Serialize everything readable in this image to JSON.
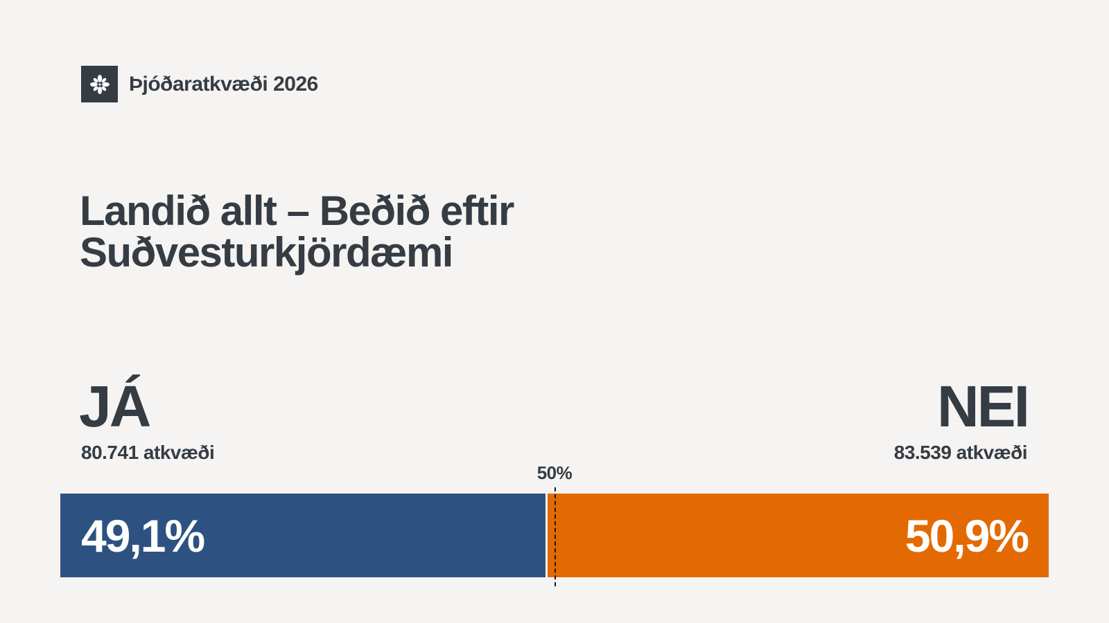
{
  "header": {
    "brand_name": "Þjóðaratkvæði 2026",
    "logo_icon": "sunburst-emblem-icon"
  },
  "title": {
    "line1": "Landið allt – Beðið eftir",
    "line2": "Suðvesturkjördæmi"
  },
  "result": {
    "yes": {
      "label": "JÁ",
      "votes_text": "80.741 atkvæði",
      "votes": 80741,
      "percent_text": "49,1%",
      "percent": 49.1,
      "color": "#2d5282"
    },
    "no": {
      "label": "NEI",
      "votes_text": "83.539 atkvæði",
      "votes": 83539,
      "percent_text": "50,9%",
      "percent": 50.9,
      "color": "#e36a02"
    },
    "threshold_label": "50%",
    "threshold": 50
  },
  "colors": {
    "background": "#f5f4f2",
    "text": "#353c44"
  }
}
